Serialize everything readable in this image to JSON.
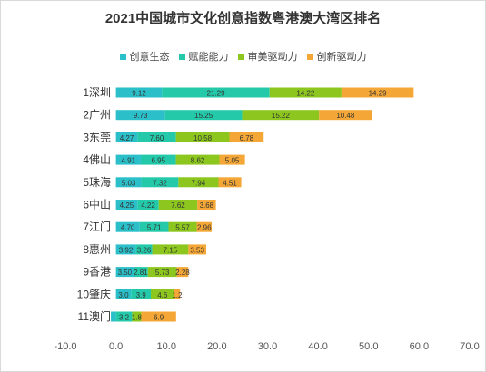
{
  "chart_data": {
    "type": "bar",
    "orientation": "horizontal",
    "stacked": true,
    "title": "2021中国城市文化创意指数粤港澳大湾区排名",
    "categories": [
      "1深圳",
      "2广州",
      "3东莞",
      "4佛山",
      "5珠海",
      "6中山",
      "7江门",
      "8惠州",
      "9香港",
      "10肇庆",
      "11澳门"
    ],
    "series": [
      {
        "name": "创意生态",
        "color": "#2bbfc9",
        "values": [
          9.12,
          9.73,
          4.27,
          4.91,
          5.03,
          4.25,
          4.7,
          3.92,
          3.5,
          3.0,
          -1.0
        ]
      },
      {
        "name": "赋能能力",
        "color": "#24c9a9",
        "values": [
          21.29,
          15.25,
          7.6,
          6.95,
          7.32,
          4.22,
          5.71,
          3.26,
          2.81,
          3.9,
          3.2
        ]
      },
      {
        "name": "审美驱动力",
        "color": "#8cc61e",
        "values": [
          14.22,
          15.22,
          10.58,
          8.62,
          7.94,
          7.62,
          5.57,
          7.15,
          5.73,
          4.6,
          1.8
        ]
      },
      {
        "name": "创新驱动力",
        "color": "#f4a736",
        "values": [
          14.29,
          10.48,
          6.78,
          5.05,
          4.51,
          3.68,
          2.96,
          3.53,
          2.28,
          1.2,
          6.9
        ]
      }
    ],
    "data_labels": [
      [
        "9.12",
        "21.29",
        "14.22",
        "14.29"
      ],
      [
        "9.73",
        "15.25",
        "15.22",
        "10.48"
      ],
      [
        "4.27",
        "7.60",
        "10.58",
        "6.78"
      ],
      [
        "4.91",
        "6.95",
        "8.62",
        "5.05"
      ],
      [
        "5.03",
        "7.32",
        "7.94",
        "4.51"
      ],
      [
        "4.25",
        "4.22",
        "7.62",
        "3.68"
      ],
      [
        "4.70",
        "5.71",
        "5.57",
        "2.96"
      ],
      [
        "3.92",
        "3.26",
        "7.15",
        "3.53"
      ],
      [
        "3.50",
        "2.81",
        "5.73",
        "2.28"
      ],
      [
        "3.0",
        "3.9",
        "4.6",
        "1.2"
      ],
      [
        "",
        "3.2",
        "1.8",
        "6.9"
      ]
    ],
    "xlim": [
      -10,
      70
    ],
    "x_ticks": [
      "-10.0",
      "0.0",
      "10.0",
      "20.0",
      "30.0",
      "40.0",
      "50.0",
      "60.0",
      "70.0"
    ],
    "grid": false,
    "legend_position": "top"
  },
  "colors": {
    "title": "#333333",
    "axis_text": "#555555",
    "category_text": "#333333",
    "bar_label": "#333333"
  }
}
